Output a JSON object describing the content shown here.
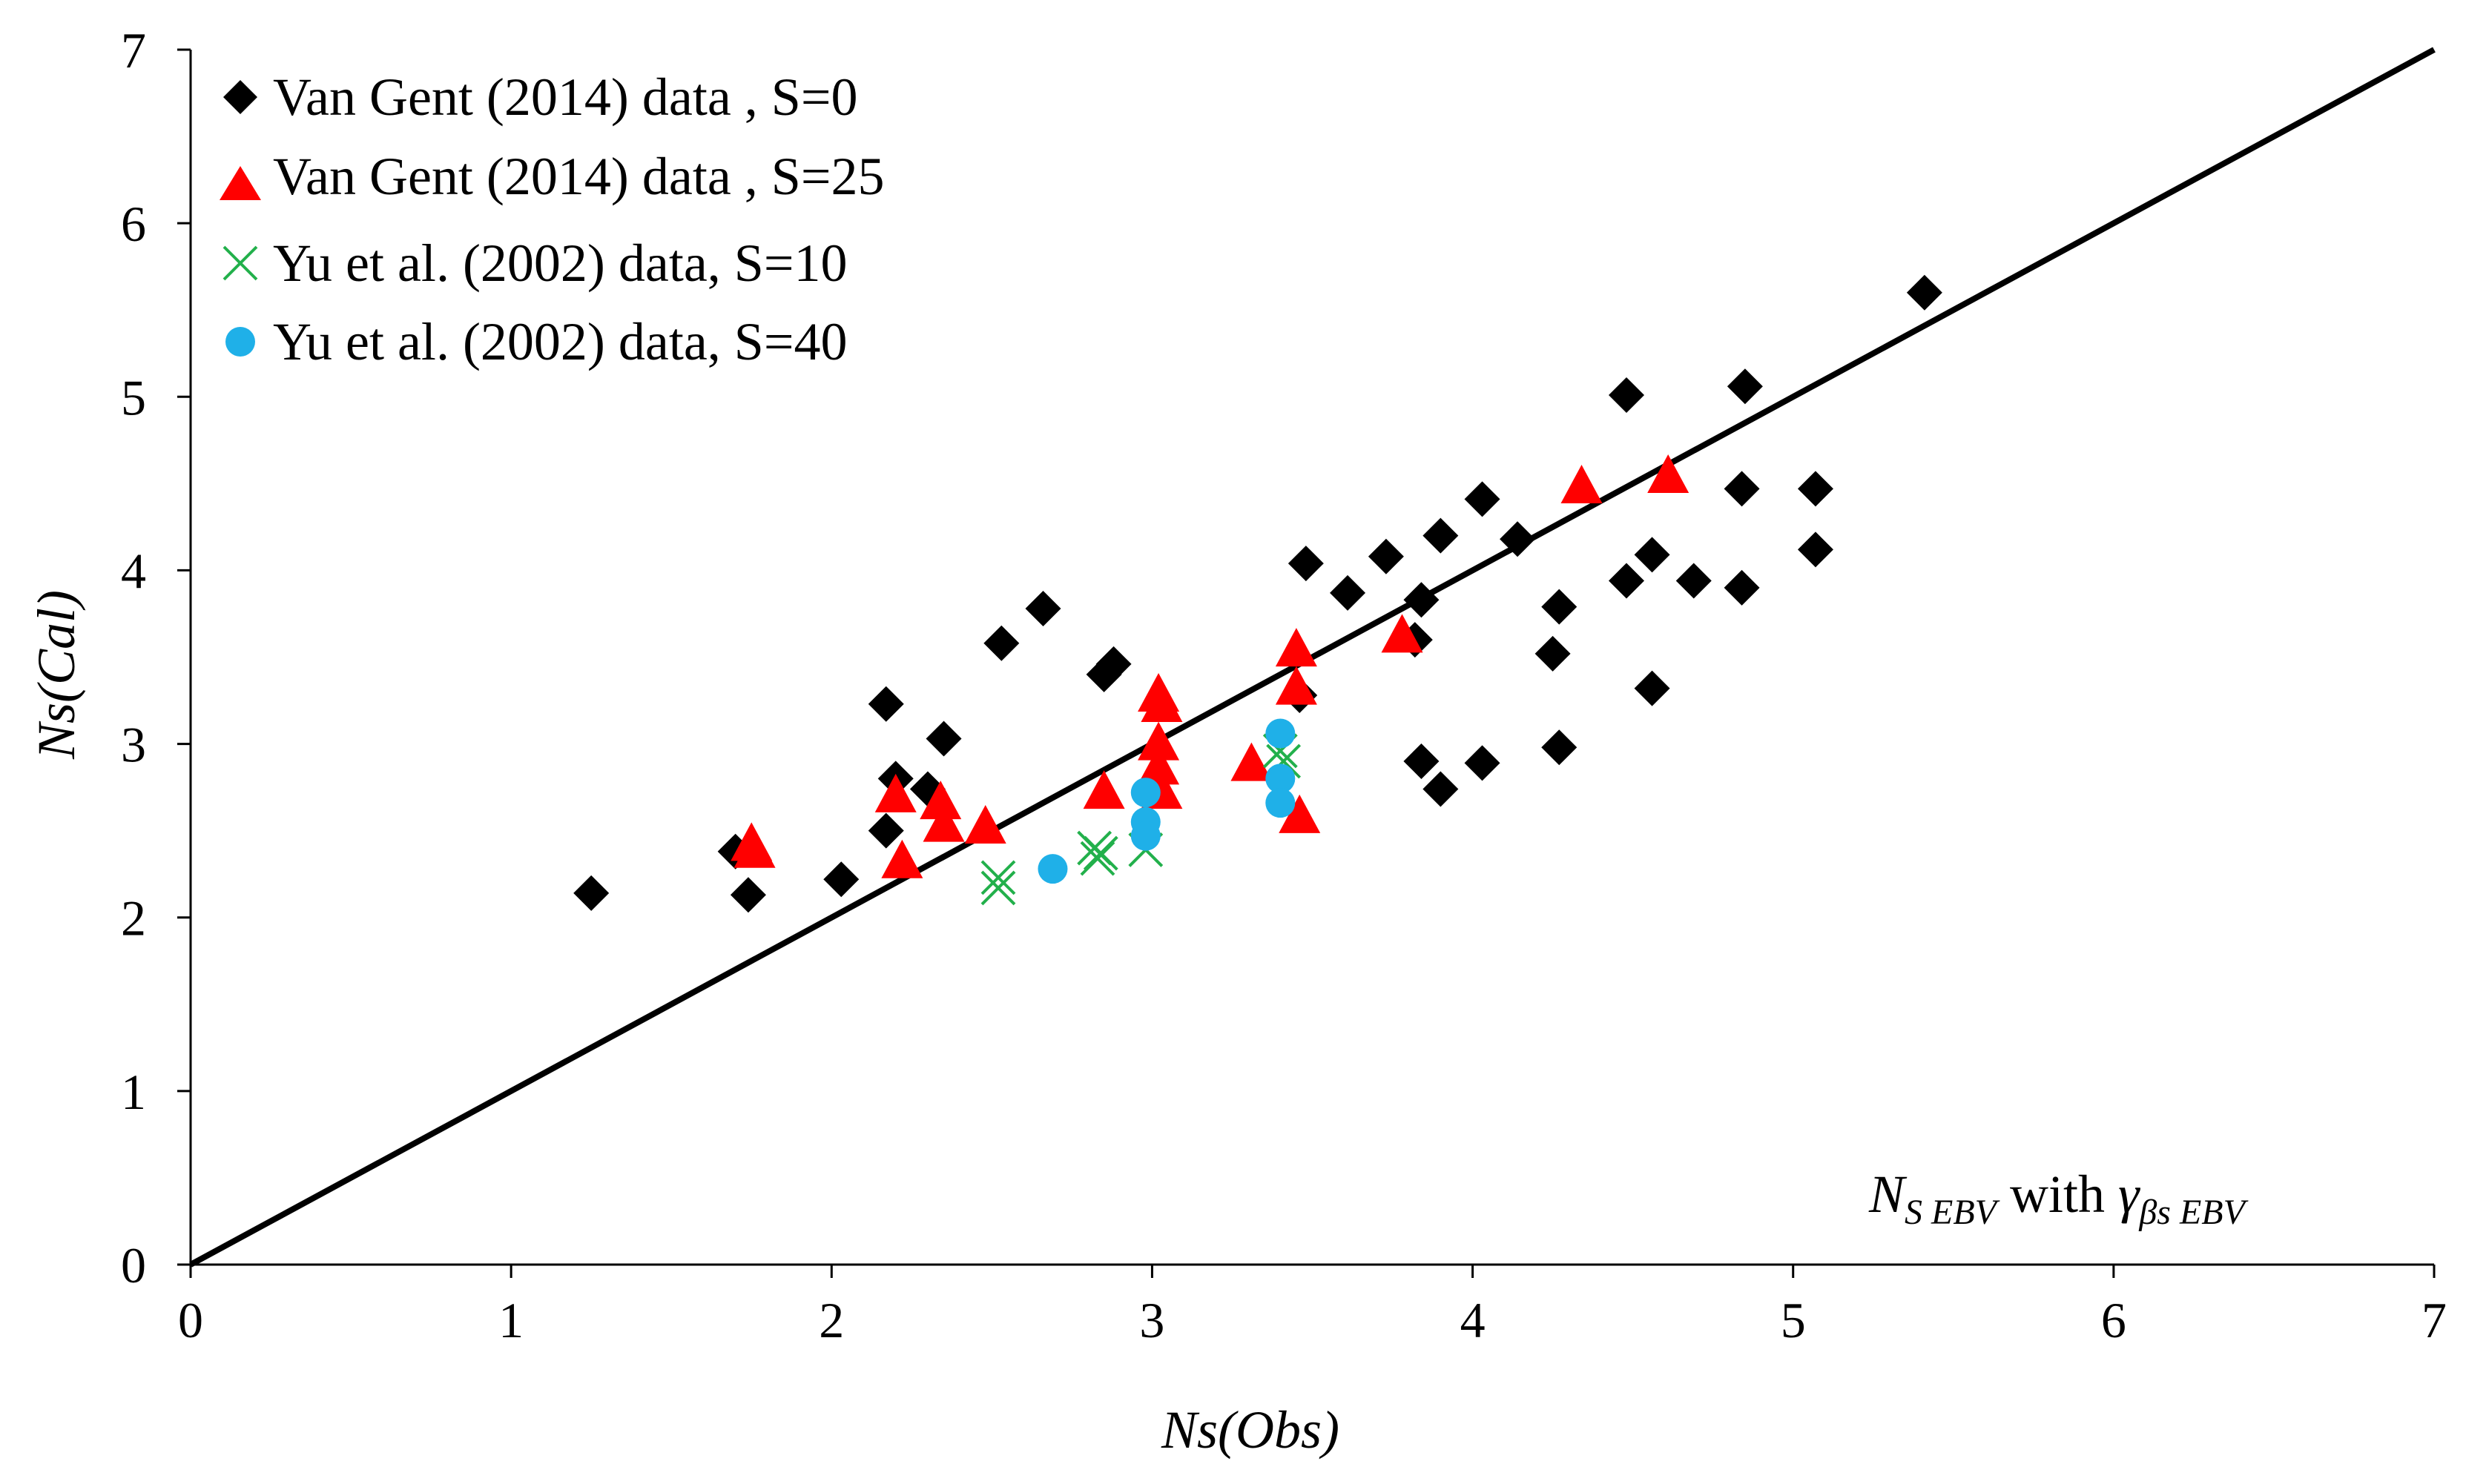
{
  "chart_data": {
    "type": "scatter",
    "title": "",
    "xlabel": "Ns(Obs)",
    "ylabel": "Ns(Cal)",
    "xlim": [
      0,
      7
    ],
    "ylim": [
      0,
      7
    ],
    "xticks": [
      0,
      1,
      2,
      3,
      4,
      5,
      6,
      7
    ],
    "yticks": [
      0,
      1,
      2,
      3,
      4,
      5,
      6,
      7
    ],
    "grid": false,
    "legend_position": "top-left",
    "reference_line": {
      "name": "1:1 line",
      "from": [
        0,
        0
      ],
      "to": [
        7,
        7
      ],
      "color": "#000000"
    },
    "annotation": {
      "main1": "N",
      "sub1": "S EBV",
      "main2": " with ",
      "main3": "γ",
      "sub3": "βs EBV"
    },
    "series": [
      {
        "name": "Van Gent (2014) data , S=0",
        "marker": "diamond",
        "color": "#000000",
        "points": [
          [
            1.25,
            2.14
          ],
          [
            1.7,
            2.38
          ],
          [
            1.74,
            2.13
          ],
          [
            2.03,
            2.22
          ],
          [
            2.17,
            2.5
          ],
          [
            2.17,
            3.23
          ],
          [
            2.2,
            2.8
          ],
          [
            2.3,
            2.74
          ],
          [
            2.35,
            3.03
          ],
          [
            2.53,
            3.58
          ],
          [
            2.66,
            3.78
          ],
          [
            2.85,
            3.4
          ],
          [
            2.88,
            3.46
          ],
          [
            3.46,
            3.28
          ],
          [
            3.48,
            4.04
          ],
          [
            3.61,
            3.87
          ],
          [
            3.73,
            4.08
          ],
          [
            3.82,
            3.6
          ],
          [
            3.84,
            3.83
          ],
          [
            3.84,
            2.9
          ],
          [
            3.9,
            4.2
          ],
          [
            3.9,
            2.74
          ],
          [
            4.03,
            4.41
          ],
          [
            4.03,
            2.89
          ],
          [
            4.14,
            4.18
          ],
          [
            4.25,
            3.52
          ],
          [
            4.27,
            3.79
          ],
          [
            4.27,
            2.98
          ],
          [
            4.48,
            3.94
          ],
          [
            4.48,
            5.01
          ],
          [
            4.56,
            4.09
          ],
          [
            4.56,
            3.32
          ],
          [
            4.69,
            3.94
          ],
          [
            4.84,
            3.9
          ],
          [
            4.84,
            4.47
          ],
          [
            4.85,
            5.06
          ],
          [
            5.07,
            4.47
          ],
          [
            5.07,
            4.12
          ],
          [
            5.41,
            5.6
          ]
        ]
      },
      {
        "name": "Van Gent (2014) data , S=25",
        "marker": "triangle",
        "color": "#ff0000",
        "points": [
          [
            1.75,
            2.42
          ],
          [
            1.76,
            2.38
          ],
          [
            2.2,
            2.7
          ],
          [
            2.22,
            2.32
          ],
          [
            2.34,
            2.66
          ],
          [
            2.35,
            2.53
          ],
          [
            2.48,
            2.52
          ],
          [
            2.85,
            2.72
          ],
          [
            3.02,
            3.28
          ],
          [
            3.02,
            3.0
          ],
          [
            3.02,
            2.86
          ],
          [
            3.03,
            3.22
          ],
          [
            3.03,
            2.72
          ],
          [
            3.31,
            2.88
          ],
          [
            3.45,
            3.54
          ],
          [
            3.45,
            3.32
          ],
          [
            3.46,
            2.58
          ],
          [
            3.78,
            3.62
          ],
          [
            4.34,
            4.48
          ],
          [
            4.61,
            4.54
          ]
        ]
      },
      {
        "name": "Yu et al. (2002) data, S=10",
        "marker": "x",
        "color": "#22b04b",
        "points": [
          [
            2.52,
            2.23
          ],
          [
            2.52,
            2.17
          ],
          [
            2.82,
            2.4
          ],
          [
            2.83,
            2.34
          ],
          [
            2.84,
            2.37
          ],
          [
            2.98,
            2.39
          ],
          [
            3.4,
            2.96
          ],
          [
            3.41,
            2.9
          ]
        ]
      },
      {
        "name": "Yu et al. (2002) data, S=40",
        "marker": "circle",
        "color": "#1fb0e8",
        "points": [
          [
            2.69,
            2.28
          ],
          [
            2.98,
            2.72
          ],
          [
            2.98,
            2.55
          ],
          [
            2.98,
            2.47
          ],
          [
            3.4,
            3.06
          ],
          [
            3.4,
            2.8
          ],
          [
            3.4,
            2.66
          ]
        ]
      }
    ]
  }
}
